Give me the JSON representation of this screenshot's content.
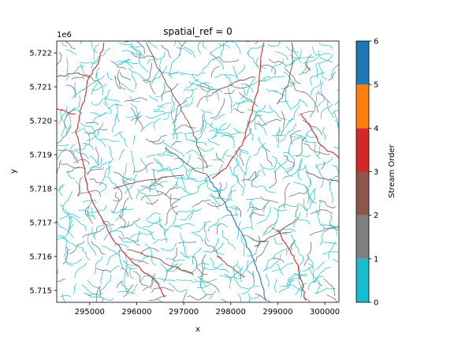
{
  "chart_data": {
    "type": "heatmap",
    "title": "spatial_ref = 0",
    "xlabel": "x",
    "ylabel": "y",
    "y_offset_label": "1e6",
    "xlim": [
      294300,
      300300
    ],
    "ylim": [
      5714650,
      5722350
    ],
    "x_ticks": [
      295000,
      296000,
      297000,
      298000,
      299000,
      300000
    ],
    "x_tick_labels": [
      "295000",
      "296000",
      "297000",
      "298000",
      "299000",
      "300000"
    ],
    "y_ticks": [
      5715000,
      5716000,
      5717000,
      5718000,
      5719000,
      5720000,
      5721000,
      5722000
    ],
    "y_tick_labels": [
      "5.715",
      "5.716",
      "5.717",
      "5.718",
      "5.719",
      "5.720",
      "5.721",
      "5.722"
    ],
    "colorbar": {
      "label": "Stream Order",
      "range": [
        0,
        6
      ],
      "ticks": [
        0,
        1,
        2,
        3,
        4,
        5,
        6
      ],
      "tick_labels": [
        "0",
        "1",
        "2",
        "3",
        "4",
        "5",
        "6"
      ],
      "colors": [
        "#17becf",
        "#7f7f7f",
        "#8c564b",
        "#d62728",
        "#ff7f0e",
        "#1f77b4"
      ]
    },
    "streams": [
      {
        "order": 6,
        "points": [
          [
            297500,
            5718400
          ],
          [
            297700,
            5718000
          ],
          [
            297900,
            5717500
          ],
          [
            298100,
            5717000
          ],
          [
            298300,
            5716500
          ],
          [
            298450,
            5716000
          ],
          [
            298600,
            5715500
          ],
          [
            298750,
            5714700
          ]
        ]
      },
      {
        "order": 4,
        "points": [
          [
            295300,
            5722300
          ],
          [
            295200,
            5721800
          ],
          [
            295000,
            5721300
          ],
          [
            294900,
            5720700
          ],
          [
            294800,
            5720200
          ],
          [
            294700,
            5719700
          ],
          [
            294800,
            5719100
          ],
          [
            294900,
            5718600
          ],
          [
            294950,
            5718000
          ],
          [
            295100,
            5717500
          ],
          [
            295300,
            5717000
          ],
          [
            295500,
            5716500
          ],
          [
            295800,
            5716000
          ],
          [
            296100,
            5715600
          ],
          [
            296400,
            5715300
          ],
          [
            296600,
            5714800
          ]
        ]
      },
      {
        "order": 4,
        "points": [
          [
            294300,
            5720350
          ],
          [
            294700,
            5720200
          ]
        ]
      },
      {
        "order": 4,
        "points": [
          [
            297600,
            5718300
          ],
          [
            297900,
            5718600
          ],
          [
            298100,
            5719000
          ],
          [
            298300,
            5719500
          ],
          [
            298400,
            5720000
          ],
          [
            298500,
            5720500
          ],
          [
            298600,
            5721100
          ],
          [
            298700,
            5722300
          ]
        ]
      },
      {
        "order": 4,
        "points": [
          [
            299000,
            5716800
          ],
          [
            299200,
            5716300
          ],
          [
            299400,
            5715800
          ],
          [
            299500,
            5715300
          ],
          [
            299600,
            5714700
          ]
        ]
      },
      {
        "order": 4,
        "points": [
          [
            300300,
            5718900
          ],
          [
            299900,
            5719300
          ],
          [
            299700,
            5719800
          ],
          [
            299500,
            5720200
          ]
        ]
      },
      {
        "order": 3,
        "points": [
          [
            296200,
            5722300
          ],
          [
            296400,
            5721700
          ],
          [
            296600,
            5721200
          ],
          [
            296800,
            5720700
          ],
          [
            297000,
            5720200
          ],
          [
            297200,
            5719700
          ],
          [
            297300,
            5719200
          ],
          [
            297500,
            5718600
          ]
        ]
      },
      {
        "order": 3,
        "points": [
          [
            296600,
            5719200
          ],
          [
            296900,
            5718900
          ],
          [
            297200,
            5718600
          ],
          [
            297500,
            5718400
          ]
        ]
      },
      {
        "order": 3,
        "points": [
          [
            299300,
            5722300
          ],
          [
            299300,
            5721600
          ],
          [
            299200,
            5721000
          ],
          [
            299000,
            5720500
          ]
        ]
      },
      {
        "order": 3,
        "points": [
          [
            298500,
            5716300
          ],
          [
            298900,
            5716600
          ],
          [
            299200,
            5716900
          ],
          [
            299400,
            5717100
          ]
        ]
      },
      {
        "order": 3,
        "points": [
          [
            295500,
            5718000
          ],
          [
            296000,
            5718200
          ],
          [
            296500,
            5718300
          ],
          [
            297000,
            5718400
          ]
        ]
      },
      {
        "order": 3,
        "points": [
          [
            295800,
            5716200
          ],
          [
            296300,
            5716000
          ],
          [
            296800,
            5715700
          ],
          [
            297200,
            5715500
          ]
        ]
      },
      {
        "order": 3,
        "points": [
          [
            297700,
            5716000
          ],
          [
            298000,
            5715700
          ],
          [
            298300,
            5715400
          ]
        ]
      },
      {
        "order": 3,
        "points": [
          [
            294300,
            5721300
          ],
          [
            294700,
            5721400
          ],
          [
            295000,
            5721300
          ]
        ]
      },
      {
        "order": 3,
        "points": [
          [
            299600,
            5718500
          ],
          [
            300000,
            5718300
          ],
          [
            300300,
            5718200
          ]
        ]
      },
      {
        "order": 3,
        "points": [
          [
            297600,
            5720800
          ],
          [
            297900,
            5721000
          ],
          [
            298200,
            5721200
          ],
          [
            298500,
            5721300
          ]
        ]
      }
    ]
  }
}
